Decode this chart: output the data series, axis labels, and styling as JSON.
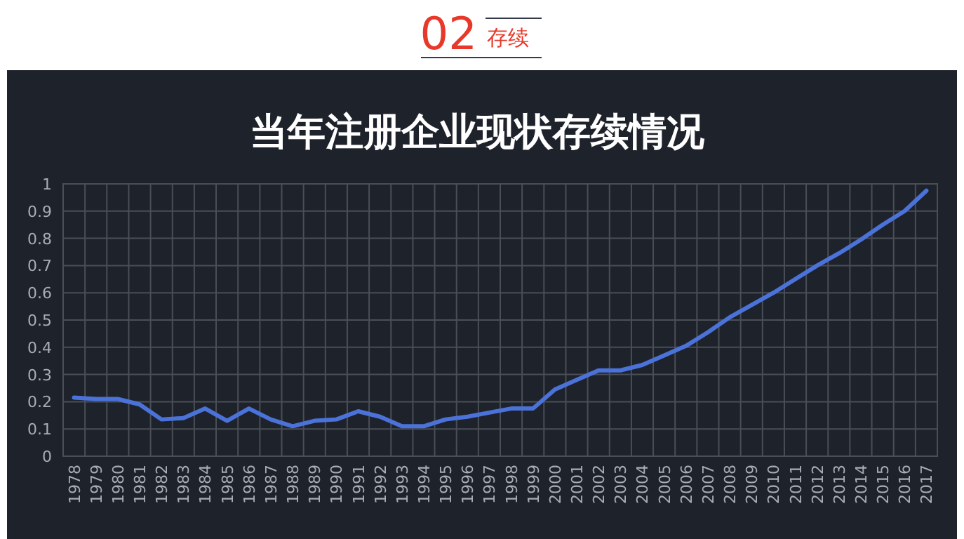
{
  "chart_data": {
    "type": "line",
    "title": "当年注册企业现状存续情况",
    "annotations": [
      "02",
      "存续"
    ],
    "categories": [
      "1978",
      "1979",
      "1980",
      "1981",
      "1982",
      "1983",
      "1984",
      "1985",
      "1986",
      "1987",
      "1988",
      "1989",
      "1990",
      "1991",
      "1992",
      "1993",
      "1994",
      "1995",
      "1996",
      "1997",
      "1998",
      "1999",
      "2000",
      "2001",
      "2002",
      "2003",
      "2004",
      "2005",
      "2006",
      "2007",
      "2008",
      "2009",
      "2010",
      "2011",
      "2012",
      "2013",
      "2014",
      "2015",
      "2016",
      "2017"
    ],
    "values": [
      0.215,
      0.21,
      0.21,
      0.19,
      0.135,
      0.14,
      0.175,
      0.13,
      0.175,
      0.135,
      0.11,
      0.13,
      0.135,
      0.165,
      0.145,
      0.11,
      0.11,
      0.135,
      0.145,
      0.16,
      0.175,
      0.175,
      0.245,
      0.28,
      0.315,
      0.315,
      0.335,
      0.37,
      0.405,
      0.455,
      0.51,
      0.555,
      0.6,
      0.65,
      0.7,
      0.745,
      0.795,
      0.85,
      0.9,
      0.975
    ],
    "color": "#4a72d8",
    "ylim": [
      0,
      1
    ],
    "yticks": [
      0,
      0.1,
      0.2,
      0.3,
      0.4,
      0.5,
      0.6,
      0.7,
      0.8,
      0.9,
      1
    ],
    "grid": true
  }
}
